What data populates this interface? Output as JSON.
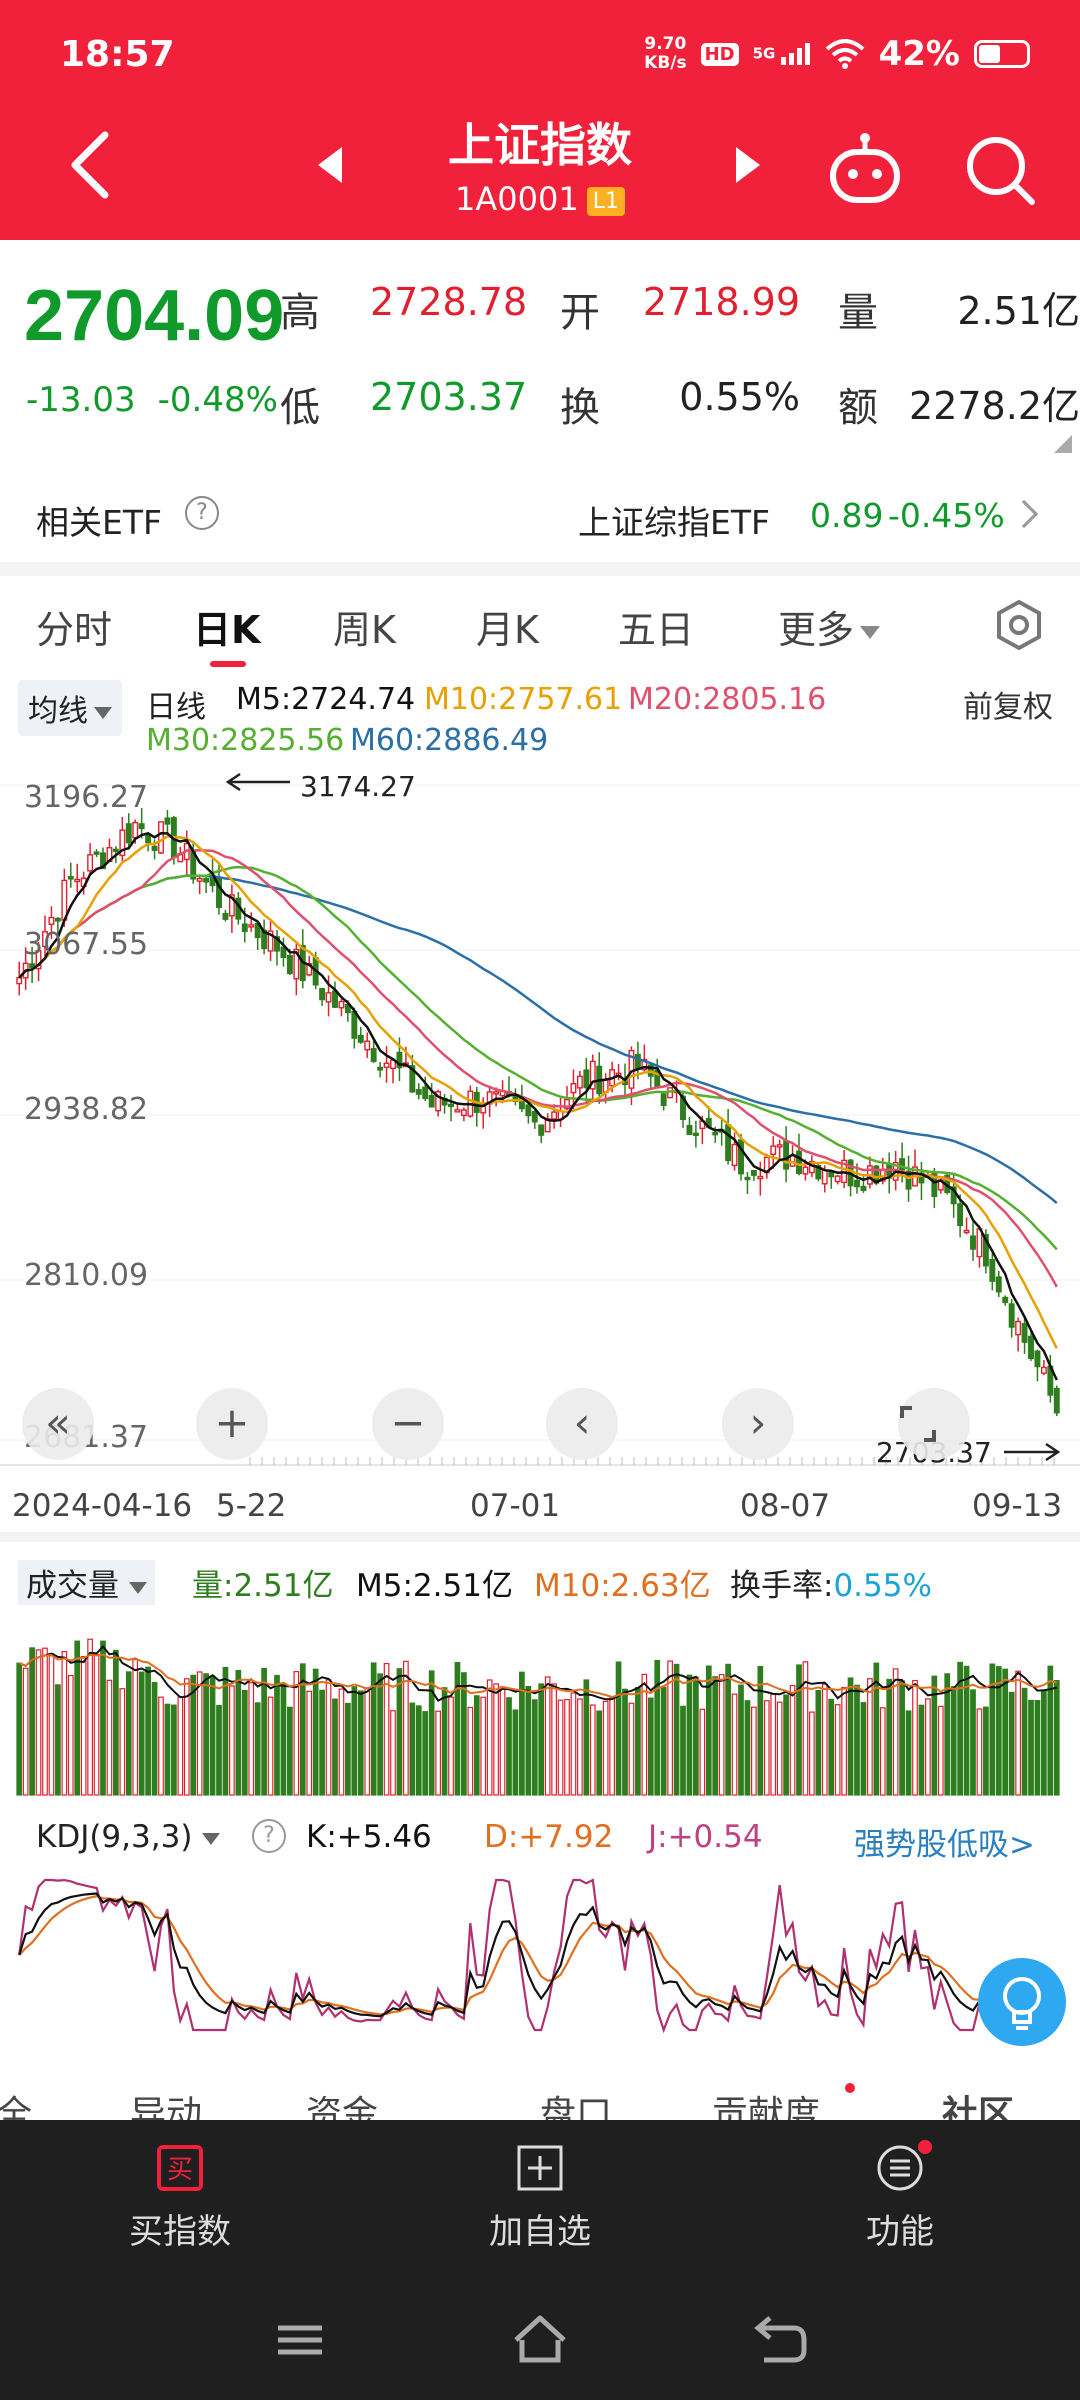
{
  "status_bar": {
    "time": "18:57",
    "net_speed_value": "9.70",
    "net_speed_unit": "KB/s",
    "hd": "HD",
    "signal": "5G",
    "battery": "42%"
  },
  "header": {
    "title": "上证指数",
    "code": "1A0001",
    "level": "L1"
  },
  "quote": {
    "price": "2704.09",
    "change": "-13.03",
    "change_pct": "-0.48%",
    "high_label": "高",
    "high": "2728.78",
    "open_label": "开",
    "open": "2718.99",
    "volume_label": "量",
    "volume": "2.51亿",
    "low_label": "低",
    "low": "2703.37",
    "turnover_label": "换",
    "turnover": "0.55%",
    "amount_label": "额",
    "amount": "2278.2亿"
  },
  "etf": {
    "label": "相关ETF",
    "help": "?",
    "name": "上证综指ETF",
    "price": "0.89",
    "pct": "-0.45%"
  },
  "tabs": [
    {
      "label": "分时"
    },
    {
      "label": "日K"
    },
    {
      "label": "周K"
    },
    {
      "label": "月K"
    },
    {
      "label": "五日"
    },
    {
      "label": "更多"
    }
  ],
  "ma_legend": {
    "selector": "均线",
    "period": "日线",
    "m5": "M5:2724.74",
    "m10": "M10:2757.61",
    "m20": "M20:2805.16",
    "m30": "M30:2825.56",
    "m60": "M60:2886.49",
    "adjust": "前复权",
    "colors": {
      "m5": "#111111",
      "m10": "#e6a100",
      "m20": "#e0506e",
      "m30": "#55b030",
      "m60": "#2a6fa8"
    }
  },
  "chart": {
    "y_labels": [
      "3196.27",
      "3067.55",
      "2938.82",
      "2810.09",
      "2681.37"
    ],
    "x_labels": [
      "2024-04-16",
      "5-22",
      "07-01",
      "08-07",
      "09-13"
    ],
    "high_mark": "3174.27",
    "low_mark": "2703.37",
    "controls": [
      "«",
      "+",
      "−",
      "‹",
      "›"
    ],
    "up_color": "#e0202e",
    "down_color": "#2e7d1e"
  },
  "volume": {
    "selector": "成交量",
    "vol": "量:2.51亿",
    "m5": "M5:2.51亿",
    "m10": "M10:2.63亿",
    "turnover_label": "换手率:",
    "turnover": "0.55%"
  },
  "kdj": {
    "selector": "KDJ(9,3,3)",
    "help": "?",
    "k": "K:+5.46",
    "d": "D:+7.92",
    "j": "J:+0.54",
    "promo": "强势股低吸>"
  },
  "subtabs": [
    "全",
    "异动",
    "资金",
    "盘口",
    "贡献度",
    "社区"
  ],
  "bottom_bar": {
    "buy": "买指数",
    "watch": "加自选",
    "functions": "功能"
  }
}
